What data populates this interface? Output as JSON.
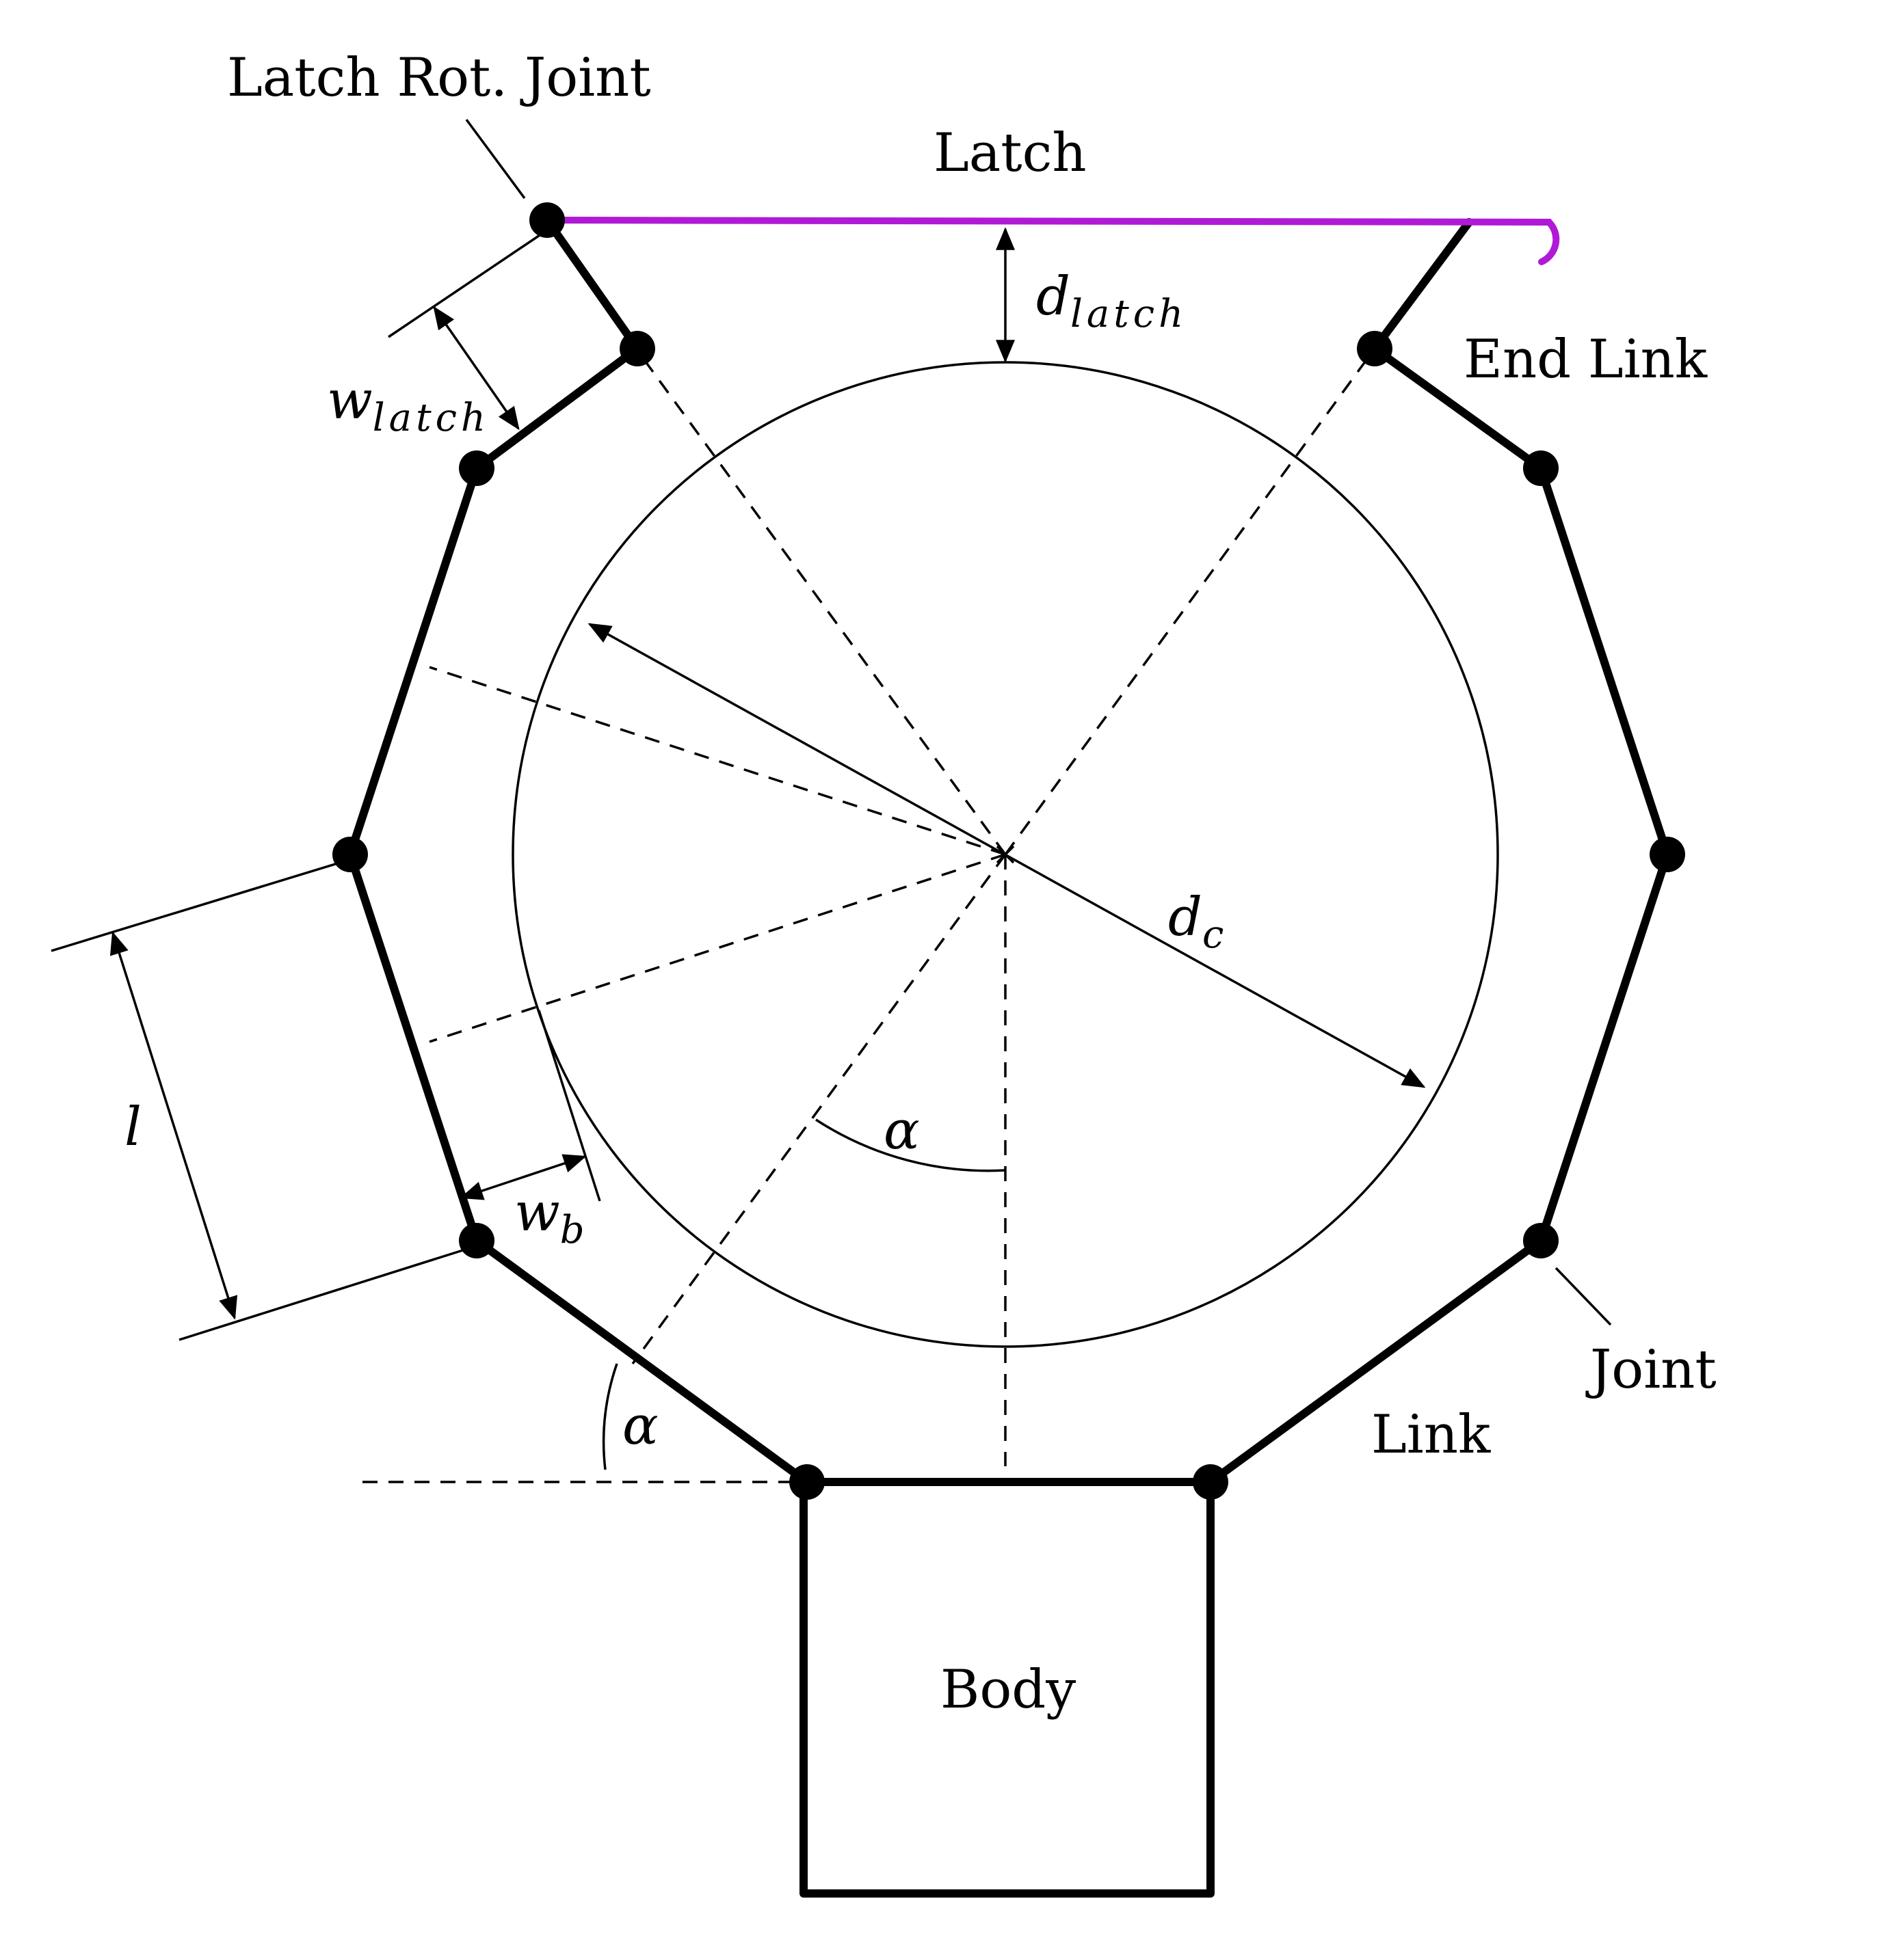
{
  "labels": {
    "latch_rot_joint": "Latch Rot. Joint",
    "latch": "Latch",
    "end_link": "End Link",
    "joint": "Joint",
    "link": "Link",
    "body": "Body"
  },
  "math": {
    "d_latch": {
      "base": "d",
      "sub": "latch"
    },
    "w_latch": {
      "base": "w",
      "sub": "latch"
    },
    "d_c": {
      "base": "d",
      "sub": "c"
    },
    "w_b": {
      "base": "w",
      "sub": "b"
    },
    "l": "l",
    "alpha_center": "α",
    "alpha_lower": "α"
  },
  "colors": {
    "latch": "#b01ad6",
    "structure": "#000000"
  }
}
